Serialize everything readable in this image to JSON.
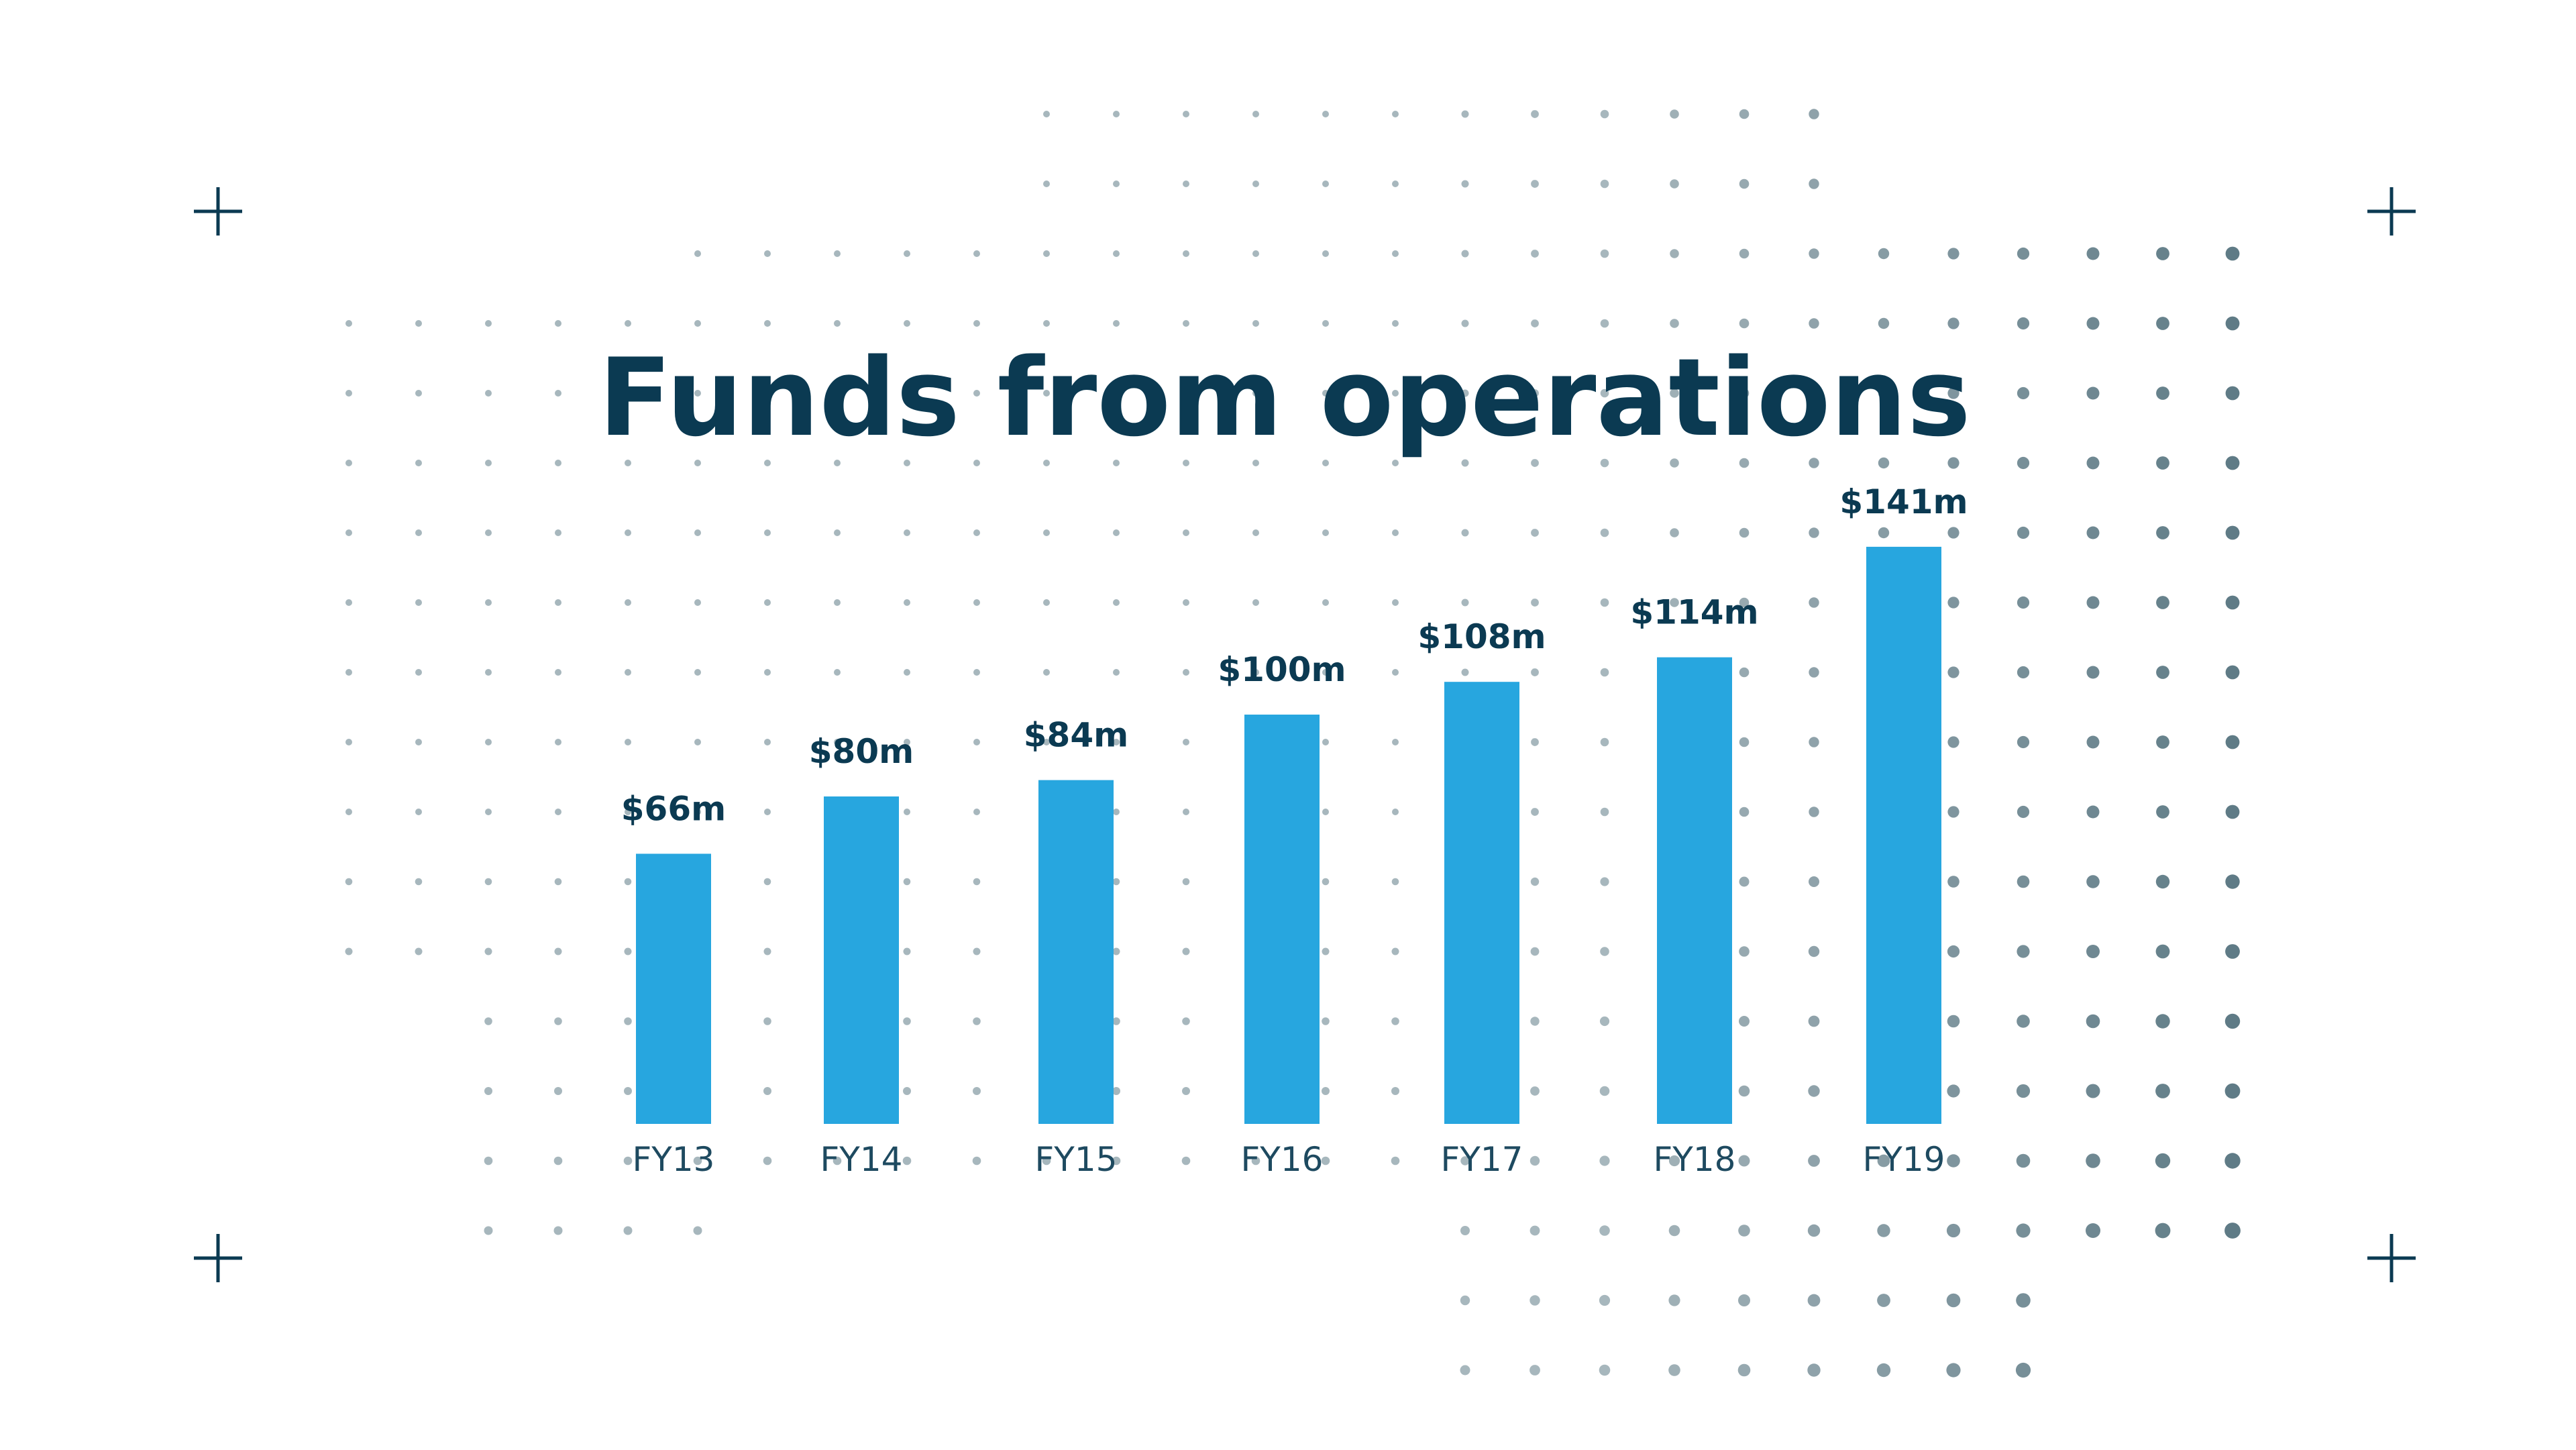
{
  "colors": {
    "bar": "#27a6df",
    "title": "#0b3a52",
    "value_label": "#0b3a52",
    "tick_label": "#1e4a60",
    "dots": "#5f7b86",
    "crosshair": "#0b3a52",
    "background": "#ffffff"
  },
  "decor": {
    "corner_marks": [
      "crosshair-icon",
      "crosshair-icon",
      "crosshair-icon",
      "crosshair-icon"
    ],
    "background": "dot-grid"
  },
  "chart_data": {
    "type": "bar",
    "title": "Funds from operations",
    "xlabel": "",
    "ylabel": "",
    "categories": [
      "FY13",
      "FY14",
      "FY15",
      "FY16",
      "FY17",
      "FY18",
      "FY19"
    ],
    "values": [
      66,
      80,
      84,
      100,
      108,
      114,
      141
    ],
    "data_labels": [
      "$66m",
      "$80m",
      "$84m",
      "$100m",
      "$108m",
      "$114m",
      "$141m"
    ],
    "units": "$m",
    "ylim": [
      0,
      150
    ],
    "grid": false,
    "legend": "none"
  }
}
